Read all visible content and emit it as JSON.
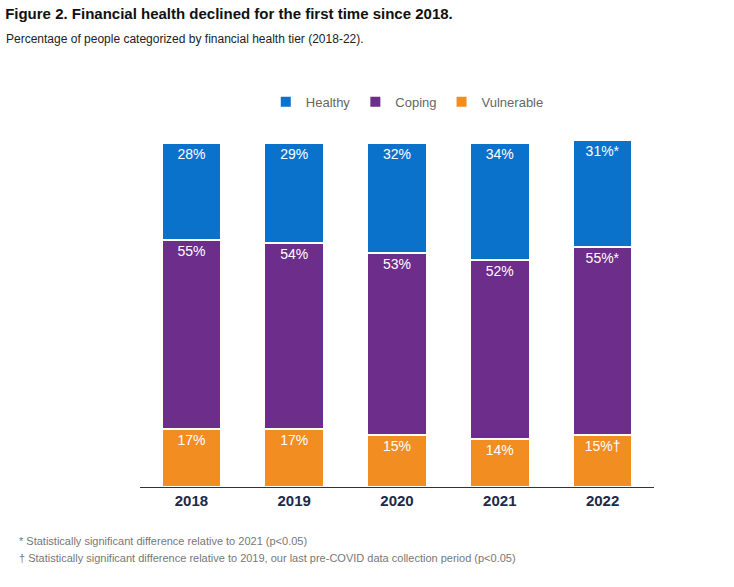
{
  "chart_data": {
    "type": "bar",
    "title": "Figure 2. Financial health declined for the first time since 2018.",
    "subtitle": "Percentage of people categorized by financial health tier (2018-22).",
    "categories": [
      "2018",
      "2019",
      "2020",
      "2021",
      "2022"
    ],
    "series": [
      {
        "name": "Healthy",
        "color": "#0b72cc",
        "values": [
          28,
          29,
          32,
          34,
          31
        ],
        "value_labels": [
          "28%",
          "29%",
          "32%",
          "34%",
          "31%*"
        ]
      },
      {
        "name": "Coping",
        "color": "#6c2d8b",
        "values": [
          55,
          54,
          53,
          52,
          55
        ],
        "value_labels": [
          "55%",
          "54%",
          "53%",
          "52%",
          "55%*"
        ]
      },
      {
        "name": "Vulnerable",
        "color": "#f28d22",
        "values": [
          17,
          17,
          15,
          14,
          15
        ],
        "value_labels": [
          "17%",
          "17%",
          "15%",
          "14%",
          "15%†"
        ]
      }
    ],
    "stacked": true,
    "data_labels": true,
    "legend": "top",
    "grid": false,
    "tick_labels": "x",
    "ylim": [
      0,
      101
    ],
    "annotations": [
      "* Statistically significant difference relative to 2021 (p<0.05)",
      "† Statistically significant difference relative to 2019, our last pre-COVID data collection period (p<0.05)"
    ]
  }
}
